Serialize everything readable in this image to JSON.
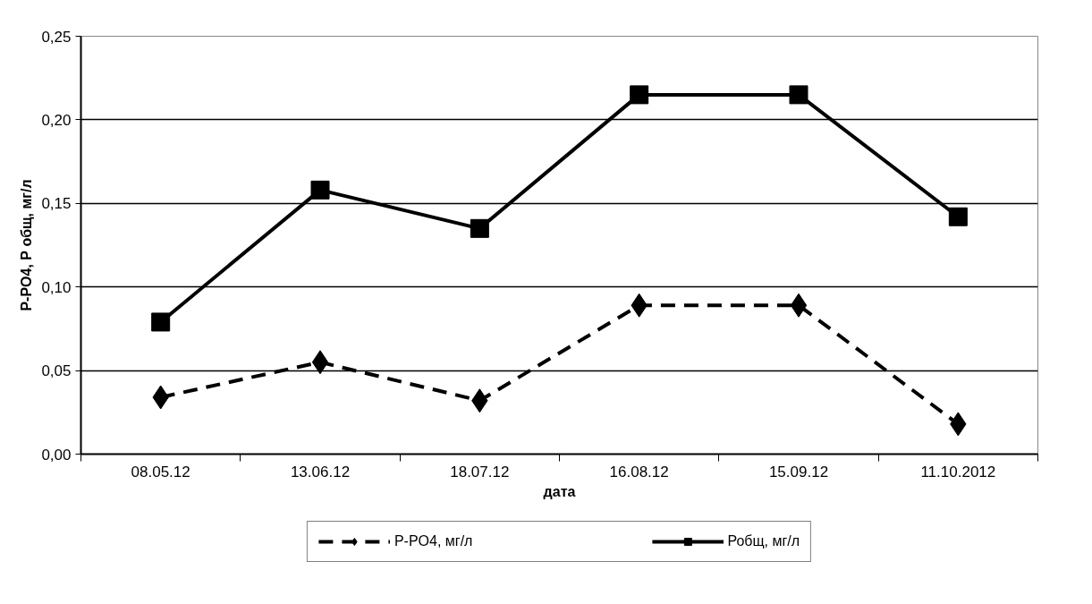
{
  "chart_data": {
    "type": "line",
    "xlabel": "дата",
    "ylabel": "P-PO4, Р общ, мг/л",
    "categories": [
      "08.05.12",
      "13.06.12",
      "18.07.12",
      "16.08.12",
      "15.09.12",
      "11.10.2012"
    ],
    "series": [
      {
        "name": "P-PO4, мг/л",
        "color": "#000000",
        "marker": "diamond",
        "line_style": "dashed",
        "values": [
          0.034,
          0.055,
          0.032,
          0.089,
          0.089,
          0.018
        ]
      },
      {
        "name": "Робщ, мг/л",
        "color": "#000000",
        "marker": "square",
        "line_style": "solid",
        "values": [
          0.079,
          0.158,
          0.135,
          0.215,
          0.215,
          0.142
        ]
      }
    ],
    "ylim": [
      0,
      0.25
    ],
    "yticks": [
      {
        "value": 0,
        "label": "0,00"
      },
      {
        "value": 0.05,
        "label": "0,05"
      },
      {
        "value": 0.1,
        "label": "0,10"
      },
      {
        "value": 0.15,
        "label": "0,15"
      },
      {
        "value": 0.2,
        "label": "0,20"
      },
      {
        "value": 0.25,
        "label": "0,25"
      }
    ],
    "grid": "y",
    "legend": "bottom"
  }
}
